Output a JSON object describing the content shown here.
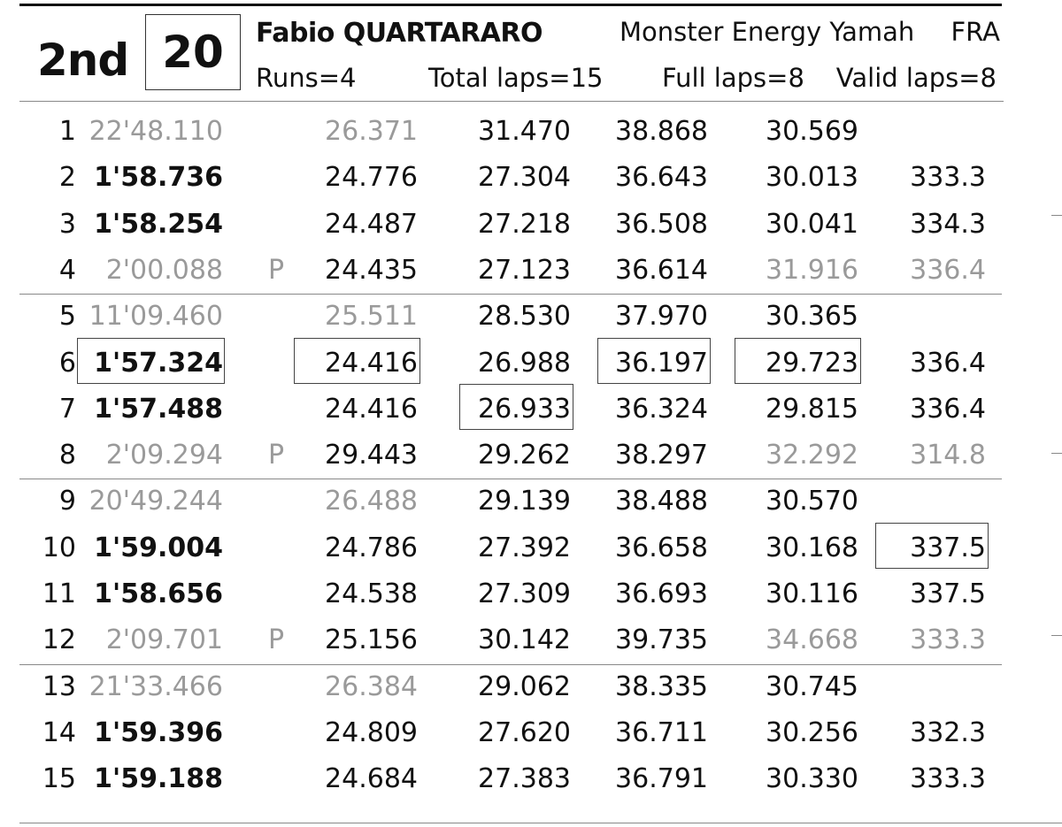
{
  "header": {
    "position": "2nd",
    "rider_number": "20",
    "rider_name": "Fabio QUARTARARO",
    "team": "Monster Energy Yamah",
    "nation": "FRA",
    "runs": "Runs=4",
    "total_laps": "Total laps=15",
    "full_laps": "Full laps=8",
    "valid_laps": "Valid laps=8"
  },
  "laps": [
    {
      "num": "1",
      "time": "22'48.110",
      "time_style": "grey",
      "pit": "",
      "s1": "26.371",
      "s1_style": "grey",
      "s2": "31.470",
      "s2_style": "",
      "s3": "38.868",
      "s3_style": "",
      "s4": "30.569",
      "s4_style": "",
      "speed": "",
      "speed_style": ""
    },
    {
      "num": "2",
      "time": "1'58.736",
      "time_style": "bold",
      "pit": "",
      "s1": "24.776",
      "s1_style": "",
      "s2": "27.304",
      "s2_style": "",
      "s3": "36.643",
      "s3_style": "",
      "s4": "30.013",
      "s4_style": "",
      "speed": "333.3",
      "speed_style": ""
    },
    {
      "num": "3",
      "time": "1'58.254",
      "time_style": "bold",
      "pit": "",
      "s1": "24.487",
      "s1_style": "",
      "s2": "27.218",
      "s2_style": "",
      "s3": "36.508",
      "s3_style": "",
      "s4": "30.041",
      "s4_style": "",
      "speed": "334.3",
      "speed_style": ""
    },
    {
      "num": "4",
      "time": "2'00.088",
      "time_style": "grey",
      "pit": "P",
      "s1": "24.435",
      "s1_style": "",
      "s2": "27.123",
      "s2_style": "",
      "s3": "36.614",
      "s3_style": "",
      "s4": "31.916",
      "s4_style": "grey",
      "speed": "336.4",
      "speed_style": "grey"
    },
    {
      "num": "5",
      "time": "11'09.460",
      "time_style": "grey",
      "pit": "",
      "s1": "25.511",
      "s1_style": "grey",
      "s2": "28.530",
      "s2_style": "",
      "s3": "37.970",
      "s3_style": "",
      "s4": "30.365",
      "s4_style": "",
      "speed": "",
      "speed_style": ""
    },
    {
      "num": "6",
      "time": "1'57.324",
      "time_style": "bold",
      "pit": "",
      "s1": "24.416",
      "s1_style": "",
      "s2": "26.988",
      "s2_style": "",
      "s3": "36.197",
      "s3_style": "",
      "s4": "29.723",
      "s4_style": "",
      "speed": "336.4",
      "speed_style": ""
    },
    {
      "num": "7",
      "time": "1'57.488",
      "time_style": "bold",
      "pit": "",
      "s1": "24.416",
      "s1_style": "",
      "s2": "26.933",
      "s2_style": "",
      "s3": "36.324",
      "s3_style": "",
      "s4": "29.815",
      "s4_style": "",
      "speed": "336.4",
      "speed_style": ""
    },
    {
      "num": "8",
      "time": "2'09.294",
      "time_style": "grey",
      "pit": "P",
      "s1": "29.443",
      "s1_style": "",
      "s2": "29.262",
      "s2_style": "",
      "s3": "38.297",
      "s3_style": "",
      "s4": "32.292",
      "s4_style": "grey",
      "speed": "314.8",
      "speed_style": "grey"
    },
    {
      "num": "9",
      "time": "20'49.244",
      "time_style": "grey",
      "pit": "",
      "s1": "26.488",
      "s1_style": "grey",
      "s2": "29.139",
      "s2_style": "",
      "s3": "38.488",
      "s3_style": "",
      "s4": "30.570",
      "s4_style": "",
      "speed": "",
      "speed_style": ""
    },
    {
      "num": "10",
      "time": "1'59.004",
      "time_style": "bold",
      "pit": "",
      "s1": "24.786",
      "s1_style": "",
      "s2": "27.392",
      "s2_style": "",
      "s3": "36.658",
      "s3_style": "",
      "s4": "30.168",
      "s4_style": "",
      "speed": "337.5",
      "speed_style": ""
    },
    {
      "num": "11",
      "time": "1'58.656",
      "time_style": "bold",
      "pit": "",
      "s1": "24.538",
      "s1_style": "",
      "s2": "27.309",
      "s2_style": "",
      "s3": "36.693",
      "s3_style": "",
      "s4": "30.116",
      "s4_style": "",
      "speed": "337.5",
      "speed_style": ""
    },
    {
      "num": "12",
      "time": "2'09.701",
      "time_style": "grey",
      "pit": "P",
      "s1": "25.156",
      "s1_style": "",
      "s2": "30.142",
      "s2_style": "",
      "s3": "39.735",
      "s3_style": "",
      "s4": "34.668",
      "s4_style": "grey",
      "speed": "333.3",
      "speed_style": "grey"
    },
    {
      "num": "13",
      "time": "21'33.466",
      "time_style": "grey",
      "pit": "",
      "s1": "26.384",
      "s1_style": "grey",
      "s2": "29.062",
      "s2_style": "",
      "s3": "38.335",
      "s3_style": "",
      "s4": "30.745",
      "s4_style": "",
      "speed": "",
      "speed_style": ""
    },
    {
      "num": "14",
      "time": "1'59.396",
      "time_style": "bold",
      "pit": "",
      "s1": "24.809",
      "s1_style": "",
      "s2": "27.620",
      "s2_style": "",
      "s3": "36.711",
      "s3_style": "",
      "s4": "30.256",
      "s4_style": "",
      "speed": "332.3",
      "speed_style": ""
    },
    {
      "num": "15",
      "time": "1'59.188",
      "time_style": "bold",
      "pit": "",
      "s1": "24.684",
      "s1_style": "",
      "s2": "27.383",
      "s2_style": "",
      "s3": "36.791",
      "s3_style": "",
      "s4": "30.330",
      "s4_style": "",
      "speed": "333.3",
      "speed_style": ""
    }
  ],
  "best_marked": [
    {
      "lap": 6,
      "column": "time"
    },
    {
      "lap": 6,
      "column": "s1"
    },
    {
      "lap": 7,
      "column": "s2"
    },
    {
      "lap": 6,
      "column": "s3"
    },
    {
      "lap": 6,
      "column": "s4"
    },
    {
      "lap": 10,
      "column": "speed"
    }
  ],
  "run_separators_after_laps": [
    4,
    8,
    12
  ],
  "colors": {
    "text": "#111111",
    "muted": "#9a9a9a",
    "rule": "#888888"
  }
}
